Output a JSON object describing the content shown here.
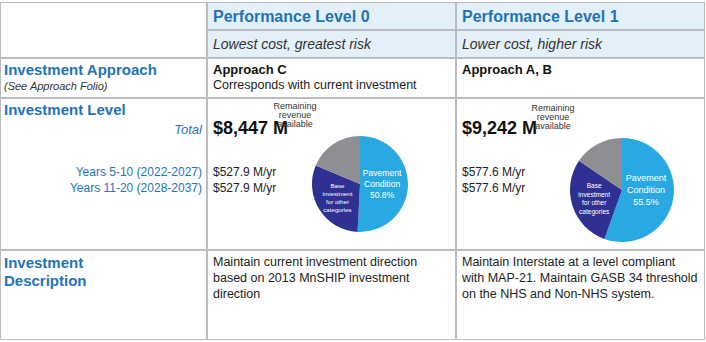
{
  "table": {
    "header": {
      "levels": [
        {
          "title": "Performance Level 0",
          "subtitle": "Lowest cost, greatest risk"
        },
        {
          "title": "Performance Level 1",
          "subtitle": "Lower cost, higher risk"
        }
      ]
    },
    "approach": {
      "label": "Investment Approach",
      "note": "(See Approach Folio)",
      "cells": [
        {
          "title": "Approach C",
          "text": "Corresponds with current investment"
        },
        {
          "title": "Approach A, B"
        }
      ]
    },
    "level": {
      "label": "Investment Level",
      "total_label": "Total",
      "periods": [
        "Years 5-10 (2022-2027)",
        "Years 11-20 (2028-2037)"
      ],
      "cells": [
        {
          "total": "$8,447 M",
          "per_year": [
            "$527.9 M/yr",
            "$527.9 M/yr"
          ]
        },
        {
          "total": "$9,242 M",
          "per_year": [
            "$577.6 M/yr",
            "$577.6 M/yr"
          ]
        }
      ]
    },
    "description": {
      "label": "Investment Description",
      "cells": [
        "Maintain current investment direction based on 2013 MnSHIP investment direction",
        "Maintain Interstate at a level compliant with MAP-21. Maintain GASB 34 threshold on the NHS and Non-NHS system."
      ]
    }
  },
  "chart_data": [
    {
      "type": "pie",
      "labels": [
        "Pavement Condition",
        "Base investment for other categories",
        "Remaining revenue available"
      ],
      "values": [
        50.8,
        30.5,
        18.7
      ],
      "value_labels": [
        "50.8%",
        null,
        null
      ],
      "colors": [
        "#29a9e1",
        "#2e3192",
        "#8d8f92"
      ]
    },
    {
      "type": "pie",
      "labels": [
        "Pavement Condition",
        "Base investment for other categories",
        "Remaining revenue available"
      ],
      "values": [
        55.5,
        29.0,
        15.5
      ],
      "value_labels": [
        "55.5%",
        null,
        null
      ],
      "colors": [
        "#29a9e1",
        "#2e3192",
        "#8d8f92"
      ]
    }
  ]
}
